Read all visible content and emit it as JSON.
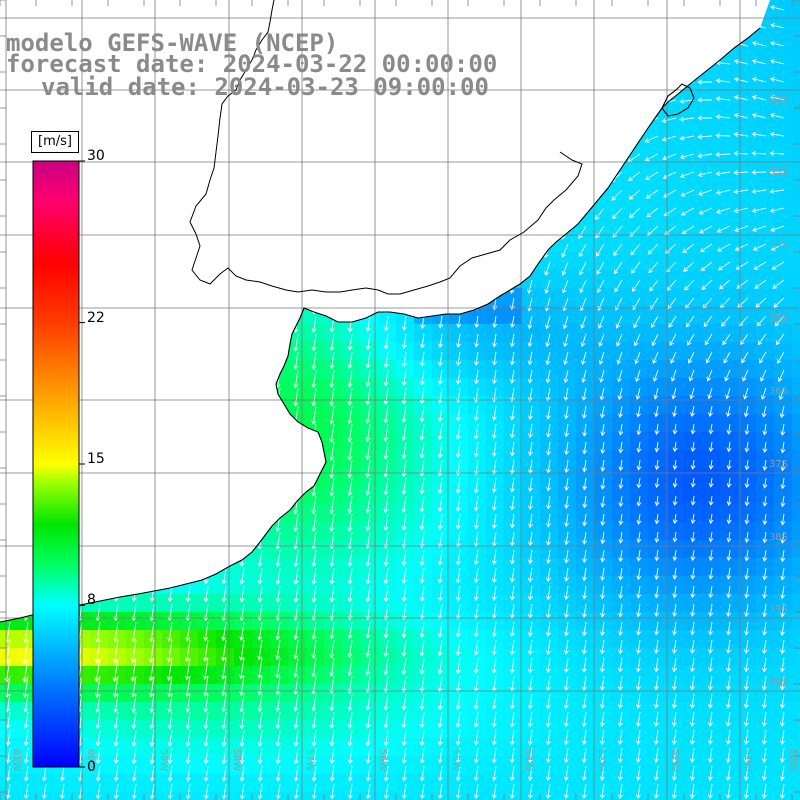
{
  "header": {
    "model_line": "modelo GEFS-WAVE (NCEP)",
    "forecast_line": "forecast date: 2024-03-22 00:00:00",
    "valid_line": "valid date: 2024-03-23 09:00:00"
  },
  "colorbar": {
    "unit": "[m/s]",
    "ticks": [
      {
        "value": 30,
        "label": "30"
      },
      {
        "value": 22,
        "label": "22"
      },
      {
        "value": 15,
        "label": "15"
      },
      {
        "value": 8,
        "label": "8"
      },
      {
        "value": 0,
        "label": "0"
      }
    ],
    "range": [
      0,
      30
    ],
    "colors": [
      "#0000ff",
      "#0066ff",
      "#00ccff",
      "#00ffff",
      "#00ff66",
      "#00e000",
      "#99ff00",
      "#ffff00",
      "#ffa500",
      "#ff4000",
      "#ff0000",
      "#ff0060",
      "#c80078"
    ]
  },
  "map": {
    "lat_labels": [
      "32S",
      "33S",
      "34S",
      "35S",
      "36S",
      "37S",
      "38S",
      "39S",
      "40S"
    ],
    "lon_labels": [
      "61W",
      "60W",
      "59W",
      "58W",
      "57W",
      "56W",
      "55W",
      "54W",
      "53W",
      "52W",
      "51W",
      "50W"
    ],
    "land_color": "#ffffff",
    "grid_color": "#7a7a7a",
    "arrow_color": "#ffffff"
  }
}
